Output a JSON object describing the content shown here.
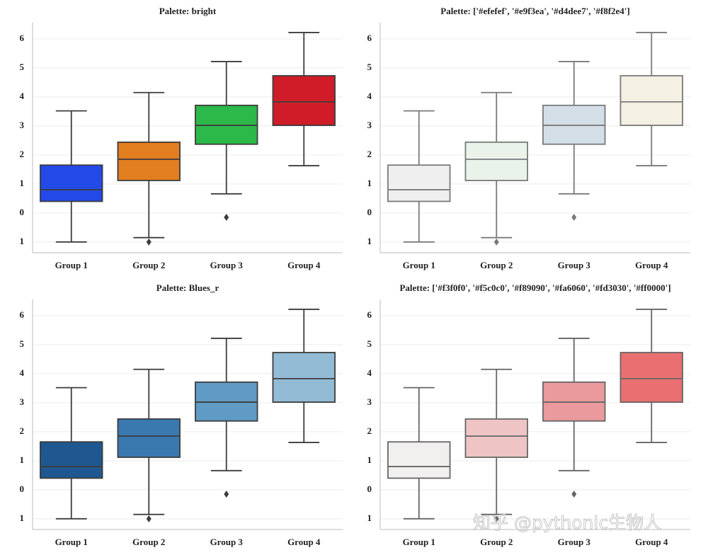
{
  "chart_data": [
    {
      "type": "box",
      "title": "Palette: bright",
      "categories": [
        "Group 1",
        "Group 2",
        "Group 3",
        "Group 4"
      ],
      "boxes": [
        {
          "whislo": -1,
          "q1": 0.4,
          "med": 0.8,
          "q3": 1.65,
          "whishi": 3.52,
          "fliers": []
        },
        {
          "whislo": -0.85,
          "q1": 1.12,
          "med": 1.85,
          "q3": 2.44,
          "whishi": 4.15,
          "fliers": [
            -1.0
          ]
        },
        {
          "whislo": 0.66,
          "q1": 2.37,
          "med": 3.02,
          "q3": 3.71,
          "whishi": 5.22,
          "fliers": [
            -0.15
          ]
        },
        {
          "whislo": 1.63,
          "q1": 3.02,
          "med": 3.83,
          "q3": 4.73,
          "whishi": 6.22,
          "fliers": []
        }
      ],
      "colors": [
        "#2349e8",
        "#e27d20",
        "#2db84a",
        "#cf1c28"
      ],
      "line_color": "#3d3d3d",
      "ylim": [
        -1.37,
        6.56
      ],
      "yticks": [
        {
          "value": -1,
          "label": "1"
        },
        0,
        1,
        2,
        3,
        4,
        5,
        6
      ],
      "grid": true
    },
    {
      "type": "box",
      "title": "Palette: ['#efefef', '#e9f3ea', '#d4dee7', '#f8f2e4']",
      "categories": [
        "Group 1",
        "Group 2",
        "Group 3",
        "Group 4"
      ],
      "boxes": [
        {
          "whislo": -1,
          "q1": 0.4,
          "med": 0.8,
          "q3": 1.65,
          "whishi": 3.52,
          "fliers": []
        },
        {
          "whislo": -0.85,
          "q1": 1.12,
          "med": 1.85,
          "q3": 2.44,
          "whishi": 4.15,
          "fliers": [
            -1.0
          ]
        },
        {
          "whislo": 0.66,
          "q1": 2.37,
          "med": 3.02,
          "q3": 3.71,
          "whishi": 5.22,
          "fliers": [
            -0.15
          ]
        },
        {
          "whislo": 1.63,
          "q1": 3.02,
          "med": 3.83,
          "q3": 4.73,
          "whishi": 6.22,
          "fliers": []
        }
      ],
      "colors": [
        "#efefef",
        "#e9f3ea",
        "#d4dee7",
        "#f5f0e4"
      ],
      "line_color": "#7a7a7a",
      "ylim": [
        -1.37,
        6.56
      ],
      "yticks": [
        {
          "value": -1,
          "label": "1"
        },
        0,
        1,
        2,
        3,
        4,
        5,
        6
      ],
      "grid": true
    },
    {
      "type": "box",
      "title": "Palette: Blues_r",
      "categories": [
        "Group 1",
        "Group 2",
        "Group 3",
        "Group 4"
      ],
      "boxes": [
        {
          "whislo": -1,
          "q1": 0.4,
          "med": 0.8,
          "q3": 1.65,
          "whishi": 3.52,
          "fliers": []
        },
        {
          "whislo": -0.85,
          "q1": 1.12,
          "med": 1.85,
          "q3": 2.44,
          "whishi": 4.15,
          "fliers": [
            -1.0
          ]
        },
        {
          "whislo": 0.66,
          "q1": 2.37,
          "med": 3.02,
          "q3": 3.71,
          "whishi": 5.22,
          "fliers": [
            -0.15
          ]
        },
        {
          "whislo": 1.63,
          "q1": 3.02,
          "med": 3.83,
          "q3": 4.73,
          "whishi": 6.22,
          "fliers": []
        }
      ],
      "colors": [
        "#1f5791",
        "#3a78b0",
        "#5f9bc4",
        "#93bbd6"
      ],
      "line_color": "#3d3d3d",
      "ylim": [
        -1.37,
        6.56
      ],
      "yticks": [
        {
          "value": -1,
          "label": "1"
        },
        0,
        1,
        2,
        3,
        4,
        5,
        6
      ],
      "grid": true
    },
    {
      "type": "box",
      "title": "Palette: ['#f3f0f0', '#f5c0c0', '#f89090', '#fa6060', '#fd3030', '#ff0000']",
      "categories": [
        "Group 1",
        "Group 2",
        "Group 3",
        "Group 4"
      ],
      "boxes": [
        {
          "whislo": -1,
          "q1": 0.4,
          "med": 0.8,
          "q3": 1.65,
          "whishi": 3.52,
          "fliers": []
        },
        {
          "whislo": -0.85,
          "q1": 1.12,
          "med": 1.85,
          "q3": 2.44,
          "whishi": 4.15,
          "fliers": [
            -1.0
          ]
        },
        {
          "whislo": 0.66,
          "q1": 2.37,
          "med": 3.02,
          "q3": 3.71,
          "whishi": 5.22,
          "fliers": [
            -0.15
          ]
        },
        {
          "whislo": 1.63,
          "q1": 3.02,
          "med": 3.83,
          "q3": 4.73,
          "whishi": 6.22,
          "fliers": []
        }
      ],
      "colors": [
        "#f2f0ef",
        "#efc4c5",
        "#ea9a9c",
        "#ea6f71"
      ],
      "line_color": "#666666",
      "ylim": [
        -1.37,
        6.56
      ],
      "yticks": [
        {
          "value": -1,
          "label": "1"
        },
        0,
        1,
        2,
        3,
        4,
        5,
        6
      ],
      "grid": true
    }
  ],
  "watermark": "知乎 @pythonic生物人"
}
